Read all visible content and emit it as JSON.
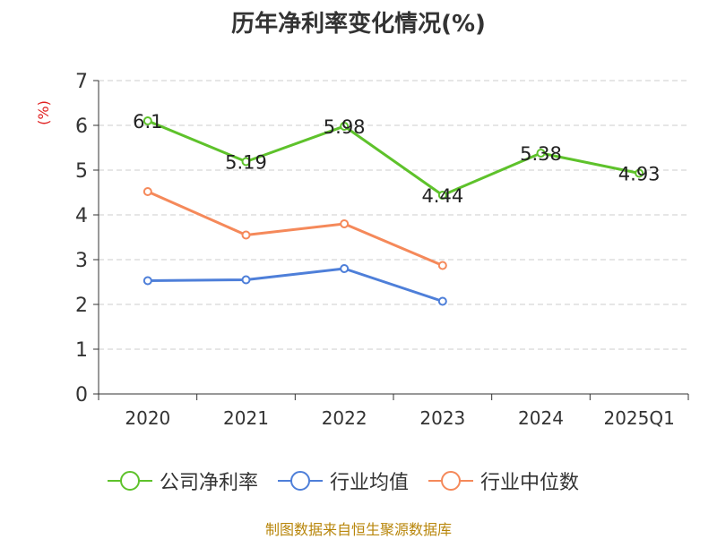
{
  "chart_data": {
    "type": "line",
    "title": "历年净利率变化情况(%)",
    "ylabel": "(%)",
    "xlabel": "",
    "categories": [
      "2020",
      "2021",
      "2022",
      "2023",
      "2024",
      "2025Q1"
    ],
    "ylim": [
      0,
      7
    ],
    "yticks": [
      "0",
      "1",
      "2",
      "3",
      "4",
      "5",
      "6",
      "7"
    ],
    "grid": true,
    "legend_position": "bottom",
    "series": [
      {
        "name": "公司净利率",
        "color": "#5ec22b",
        "values": [
          6.1,
          5.19,
          5.98,
          4.44,
          5.38,
          4.93
        ],
        "labels": [
          "6.1",
          "5.19",
          "5.98",
          "4.44",
          "5.38",
          "4.93"
        ],
        "show_labels": true
      },
      {
        "name": "行业均值",
        "color": "#4e7fd9",
        "values": [
          2.53,
          2.55,
          2.8,
          2.07,
          null,
          null
        ],
        "show_labels": false
      },
      {
        "name": "行业中位数",
        "color": "#f5895a",
        "values": [
          4.52,
          3.55,
          3.8,
          2.87,
          null,
          null
        ],
        "show_labels": false
      }
    ]
  },
  "source": "制图数据来自恒生聚源数据库"
}
